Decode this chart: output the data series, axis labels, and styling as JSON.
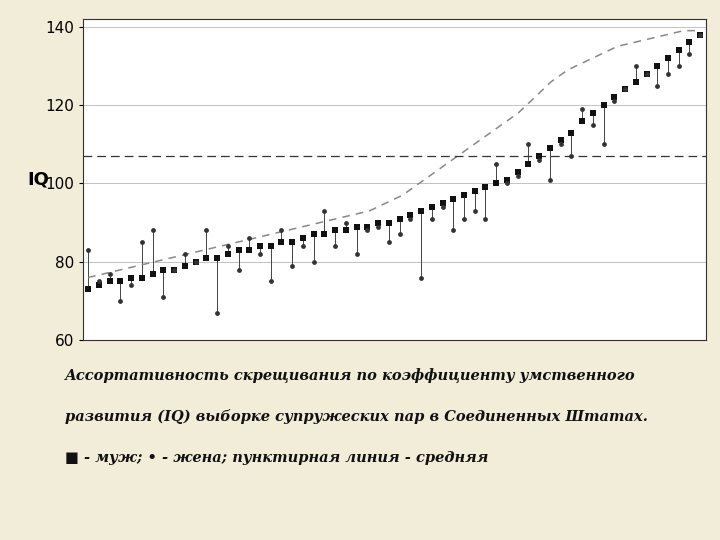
{
  "background_color": "#f2edd8",
  "plot_bg_color": "#ffffff",
  "ylim": [
    60,
    142
  ],
  "mean_line": 107,
  "ylabel": "IQ",
  "ylabel_fontsize": 13,
  "yticks": [
    60,
    80,
    100,
    120,
    140
  ],
  "caption_line1": "Ассортативность скрещивания по коэффициенту умственного",
  "caption_line2": "развития (IQ) выборке супружеских пар в Соединенных Штатах.",
  "caption_line3": "■ - муж; • - жена; пунктирная линия - средняя",
  "husbands": [
    73,
    74,
    75,
    75,
    76,
    76,
    77,
    78,
    78,
    79,
    80,
    81,
    81,
    82,
    83,
    83,
    84,
    84,
    85,
    85,
    86,
    87,
    87,
    88,
    88,
    89,
    89,
    90,
    90,
    91,
    92,
    93,
    94,
    95,
    96,
    97,
    98,
    99,
    100,
    101,
    103,
    105,
    107,
    109,
    111,
    113,
    116,
    118,
    120,
    122,
    124,
    126,
    128,
    130,
    132,
    134,
    136,
    138
  ],
  "wives": [
    83,
    75,
    77,
    70,
    74,
    85,
    88,
    71,
    78,
    82,
    80,
    88,
    67,
    84,
    78,
    86,
    82,
    75,
    88,
    79,
    84,
    80,
    93,
    84,
    90,
    82,
    88,
    89,
    85,
    87,
    91,
    76,
    91,
    94,
    88,
    91,
    93,
    91,
    105,
    100,
    102,
    110,
    106,
    101,
    110,
    107,
    119,
    115,
    110,
    121,
    124,
    130,
    128,
    125,
    128,
    130,
    133,
    138
  ],
  "trend_y": [
    76,
    77,
    78,
    79,
    80,
    81,
    82,
    83,
    84,
    85,
    86,
    87,
    88,
    89,
    90,
    91,
    92,
    93,
    95,
    97,
    100,
    103,
    106,
    109,
    112,
    115,
    118,
    122,
    126,
    129,
    131,
    133,
    135,
    136,
    137,
    138,
    139,
    139
  ]
}
